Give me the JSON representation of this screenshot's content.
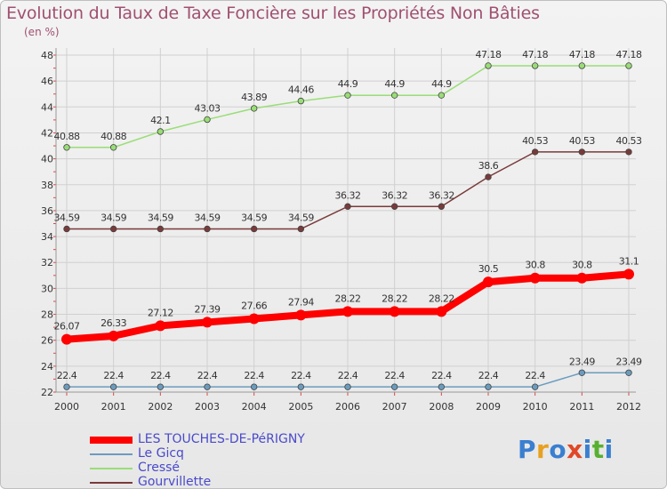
{
  "title": "Evolution du Taux de Taxe Foncière sur les Propriétés Non Bâties",
  "unit_label": "(en %)",
  "logo": {
    "text": "Proxiti",
    "letters": [
      "P",
      "r",
      "o",
      "x",
      "i",
      "t",
      "i"
    ]
  },
  "chart_data": {
    "type": "line",
    "x": [
      "2000",
      "2001",
      "2002",
      "2003",
      "2004",
      "2005",
      "2006",
      "2007",
      "2008",
      "2009",
      "2010",
      "2011",
      "2012"
    ],
    "ylim": [
      22,
      48
    ],
    "yticks": [
      "22",
      "24",
      "26",
      "28",
      "30",
      "32",
      "34",
      "36",
      "38",
      "40",
      "42",
      "44",
      "46",
      "48"
    ],
    "grid": true,
    "legend_position": "bottom-left",
    "series": [
      {
        "name": "LES TOUCHES-DE-PéRIGNY",
        "color": "#ff0000",
        "values": [
          26.07,
          26.33,
          27.12,
          27.39,
          27.66,
          27.94,
          28.22,
          28.22,
          28.22,
          30.5,
          30.8,
          30.8,
          31.1
        ],
        "labels": [
          "26.07",
          "26.33",
          "27.12",
          "27.39",
          "27.66",
          "27.94",
          "28.22",
          "28.22",
          "28.22",
          "30.5",
          "30.8",
          "30.8",
          "31.1"
        ]
      },
      {
        "name": "Le Gicq",
        "color": "#6b9cbf",
        "values": [
          22.4,
          22.4,
          22.4,
          22.4,
          22.4,
          22.4,
          22.4,
          22.4,
          22.4,
          22.4,
          22.4,
          23.49,
          23.49
        ],
        "labels": [
          "22.4",
          "22.4",
          "22.4",
          "22.4",
          "22.4",
          "22.4",
          "22.4",
          "22.4",
          "22.4",
          "22.4",
          "22.4",
          "23.49",
          "23.49"
        ]
      },
      {
        "name": "Cressé",
        "color": "#99dd77",
        "values": [
          40.88,
          40.88,
          42.1,
          43.03,
          43.89,
          44.46,
          44.9,
          44.9,
          44.9,
          47.18,
          47.18,
          47.18,
          47.18
        ],
        "labels": [
          "40.88",
          "40.88",
          "42.1",
          "43.03",
          "43.89",
          "44.46",
          "44.9",
          "44.9",
          "44.9",
          "47.18",
          "47.18",
          "47.18",
          "47.18"
        ]
      },
      {
        "name": "Gourvillette",
        "color": "#7a3a3a",
        "values": [
          34.59,
          34.59,
          34.59,
          34.59,
          34.59,
          34.59,
          36.32,
          36.32,
          36.32,
          38.6,
          40.53,
          40.53,
          40.53
        ],
        "labels": [
          "34.59",
          "34.59",
          "34.59",
          "34.59",
          "34.59",
          "34.59",
          "36.32",
          "36.32",
          "36.32",
          "38.6",
          "40.53",
          "40.53",
          "40.53"
        ]
      }
    ]
  }
}
